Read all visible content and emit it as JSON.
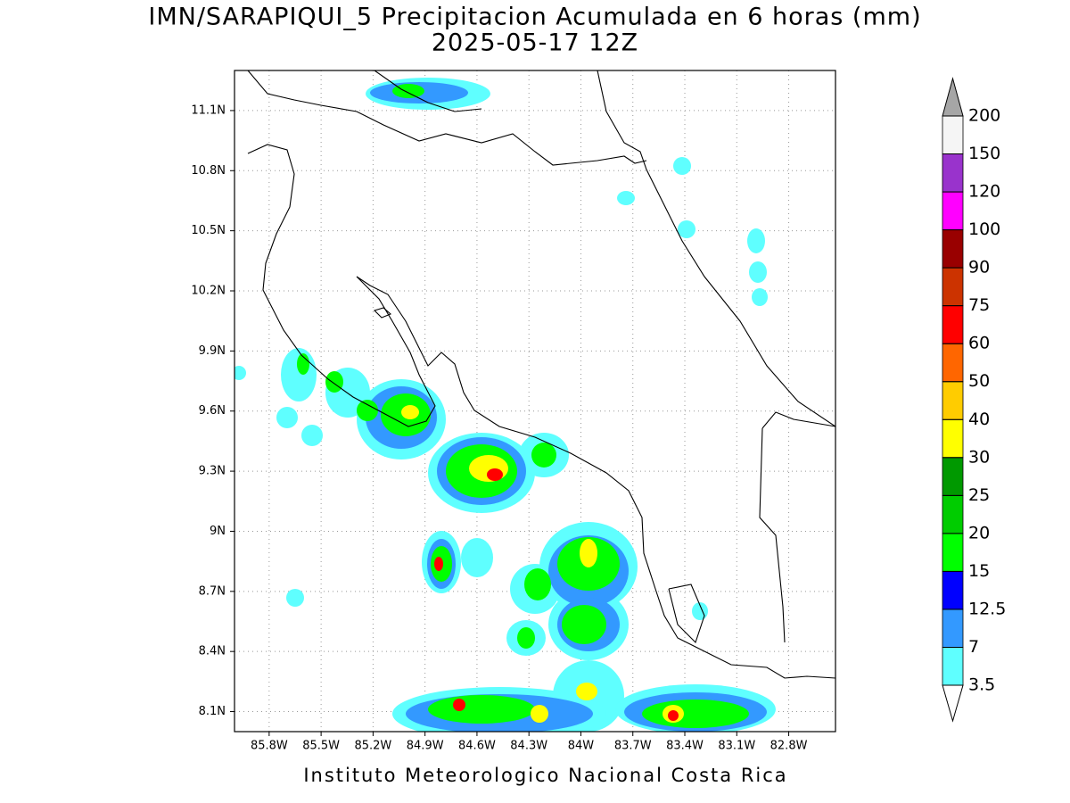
{
  "map": {
    "title": "IMN/SARAPIQUI_5 Precipitacion Acumulada en 6 horas (mm)",
    "subtitle": "2025-05-17 12Z",
    "footer": "Instituto Meteorologico Nacional Costa Rica",
    "lonlim": [
      -86.0,
      -82.53
    ],
    "latlim": [
      8.0,
      11.3
    ],
    "lonticks": [
      {
        "value": -85.8,
        "label": "85.8W"
      },
      {
        "value": -85.5,
        "label": "85.5W"
      },
      {
        "value": -85.2,
        "label": "85.2W"
      },
      {
        "value": -84.9,
        "label": "84.9W"
      },
      {
        "value": -84.6,
        "label": "84.6W"
      },
      {
        "value": -84.3,
        "label": "84.3W"
      },
      {
        "value": -84.0,
        "label": "84W"
      },
      {
        "value": -83.7,
        "label": "83.7W"
      },
      {
        "value": -83.4,
        "label": "83.4W"
      },
      {
        "value": -83.1,
        "label": "83.1W"
      },
      {
        "value": -82.8,
        "label": "82.8W"
      }
    ],
    "latticks": [
      {
        "value": 8.1,
        "label": "8.1N"
      },
      {
        "value": 8.4,
        "label": "8.4N"
      },
      {
        "value": 8.7,
        "label": "8.7N"
      },
      {
        "value": 9.0,
        "label": "9N"
      },
      {
        "value": 9.3,
        "label": "9.3N"
      },
      {
        "value": 9.6,
        "label": "9.6N"
      },
      {
        "value": 9.9,
        "label": "9.9N"
      },
      {
        "value": 10.2,
        "label": "10.2N"
      },
      {
        "value": 10.5,
        "label": "10.5N"
      },
      {
        "value": 10.8,
        "label": "10.8N"
      },
      {
        "value": 11.1,
        "label": "11.1N"
      }
    ],
    "grid": true,
    "colorbar": {
      "levels": [
        3.5,
        7,
        12.5,
        15,
        20,
        25,
        30,
        40,
        50,
        60,
        75,
        90,
        100,
        120,
        150,
        200
      ],
      "colors": [
        "#ffffff",
        "#5fffff",
        "#3399ff",
        "#0000ff",
        "#00ff00",
        "#00cc00",
        "#009900",
        "#ffff00",
        "#ffcc00",
        "#ff6600",
        "#ff0000",
        "#cc3300",
        "#990000",
        "#ff00ff",
        "#9933cc",
        "#f5f5f5",
        "#a6a6a6"
      ]
    }
  }
}
